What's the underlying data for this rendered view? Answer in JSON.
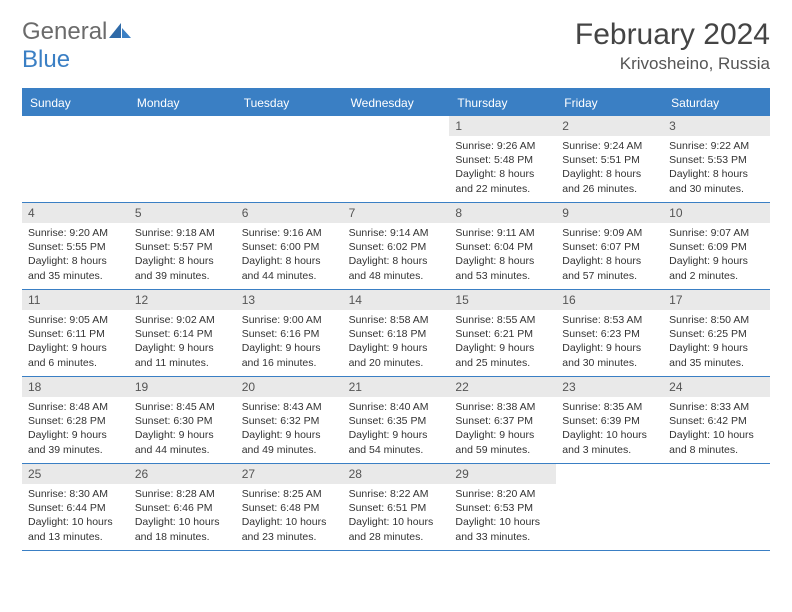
{
  "logo": {
    "general": "General",
    "blue": "Blue"
  },
  "header": {
    "title": "February 2024",
    "location": "Krivosheino, Russia"
  },
  "colors": {
    "accent": "#3a7fc4",
    "header_text": "#ffffff",
    "daynum_bg": "#e9e9e9",
    "body_bg": "#ffffff",
    "text": "#333333"
  },
  "day_names": [
    "Sunday",
    "Monday",
    "Tuesday",
    "Wednesday",
    "Thursday",
    "Friday",
    "Saturday"
  ],
  "weeks": [
    [
      {
        "day": "",
        "lines": []
      },
      {
        "day": "",
        "lines": []
      },
      {
        "day": "",
        "lines": []
      },
      {
        "day": "",
        "lines": []
      },
      {
        "day": "1",
        "lines": [
          "Sunrise: 9:26 AM",
          "Sunset: 5:48 PM",
          "Daylight: 8 hours and 22 minutes."
        ]
      },
      {
        "day": "2",
        "lines": [
          "Sunrise: 9:24 AM",
          "Sunset: 5:51 PM",
          "Daylight: 8 hours and 26 minutes."
        ]
      },
      {
        "day": "3",
        "lines": [
          "Sunrise: 9:22 AM",
          "Sunset: 5:53 PM",
          "Daylight: 8 hours and 30 minutes."
        ]
      }
    ],
    [
      {
        "day": "4",
        "lines": [
          "Sunrise: 9:20 AM",
          "Sunset: 5:55 PM",
          "Daylight: 8 hours and 35 minutes."
        ]
      },
      {
        "day": "5",
        "lines": [
          "Sunrise: 9:18 AM",
          "Sunset: 5:57 PM",
          "Daylight: 8 hours and 39 minutes."
        ]
      },
      {
        "day": "6",
        "lines": [
          "Sunrise: 9:16 AM",
          "Sunset: 6:00 PM",
          "Daylight: 8 hours and 44 minutes."
        ]
      },
      {
        "day": "7",
        "lines": [
          "Sunrise: 9:14 AM",
          "Sunset: 6:02 PM",
          "Daylight: 8 hours and 48 minutes."
        ]
      },
      {
        "day": "8",
        "lines": [
          "Sunrise: 9:11 AM",
          "Sunset: 6:04 PM",
          "Daylight: 8 hours and 53 minutes."
        ]
      },
      {
        "day": "9",
        "lines": [
          "Sunrise: 9:09 AM",
          "Sunset: 6:07 PM",
          "Daylight: 8 hours and 57 minutes."
        ]
      },
      {
        "day": "10",
        "lines": [
          "Sunrise: 9:07 AM",
          "Sunset: 6:09 PM",
          "Daylight: 9 hours and 2 minutes."
        ]
      }
    ],
    [
      {
        "day": "11",
        "lines": [
          "Sunrise: 9:05 AM",
          "Sunset: 6:11 PM",
          "Daylight: 9 hours and 6 minutes."
        ]
      },
      {
        "day": "12",
        "lines": [
          "Sunrise: 9:02 AM",
          "Sunset: 6:14 PM",
          "Daylight: 9 hours and 11 minutes."
        ]
      },
      {
        "day": "13",
        "lines": [
          "Sunrise: 9:00 AM",
          "Sunset: 6:16 PM",
          "Daylight: 9 hours and 16 minutes."
        ]
      },
      {
        "day": "14",
        "lines": [
          "Sunrise: 8:58 AM",
          "Sunset: 6:18 PM",
          "Daylight: 9 hours and 20 minutes."
        ]
      },
      {
        "day": "15",
        "lines": [
          "Sunrise: 8:55 AM",
          "Sunset: 6:21 PM",
          "Daylight: 9 hours and 25 minutes."
        ]
      },
      {
        "day": "16",
        "lines": [
          "Sunrise: 8:53 AM",
          "Sunset: 6:23 PM",
          "Daylight: 9 hours and 30 minutes."
        ]
      },
      {
        "day": "17",
        "lines": [
          "Sunrise: 8:50 AM",
          "Sunset: 6:25 PM",
          "Daylight: 9 hours and 35 minutes."
        ]
      }
    ],
    [
      {
        "day": "18",
        "lines": [
          "Sunrise: 8:48 AM",
          "Sunset: 6:28 PM",
          "Daylight: 9 hours and 39 minutes."
        ]
      },
      {
        "day": "19",
        "lines": [
          "Sunrise: 8:45 AM",
          "Sunset: 6:30 PM",
          "Daylight: 9 hours and 44 minutes."
        ]
      },
      {
        "day": "20",
        "lines": [
          "Sunrise: 8:43 AM",
          "Sunset: 6:32 PM",
          "Daylight: 9 hours and 49 minutes."
        ]
      },
      {
        "day": "21",
        "lines": [
          "Sunrise: 8:40 AM",
          "Sunset: 6:35 PM",
          "Daylight: 9 hours and 54 minutes."
        ]
      },
      {
        "day": "22",
        "lines": [
          "Sunrise: 8:38 AM",
          "Sunset: 6:37 PM",
          "Daylight: 9 hours and 59 minutes."
        ]
      },
      {
        "day": "23",
        "lines": [
          "Sunrise: 8:35 AM",
          "Sunset: 6:39 PM",
          "Daylight: 10 hours and 3 minutes."
        ]
      },
      {
        "day": "24",
        "lines": [
          "Sunrise: 8:33 AM",
          "Sunset: 6:42 PM",
          "Daylight: 10 hours and 8 minutes."
        ]
      }
    ],
    [
      {
        "day": "25",
        "lines": [
          "Sunrise: 8:30 AM",
          "Sunset: 6:44 PM",
          "Daylight: 10 hours and 13 minutes."
        ]
      },
      {
        "day": "26",
        "lines": [
          "Sunrise: 8:28 AM",
          "Sunset: 6:46 PM",
          "Daylight: 10 hours and 18 minutes."
        ]
      },
      {
        "day": "27",
        "lines": [
          "Sunrise: 8:25 AM",
          "Sunset: 6:48 PM",
          "Daylight: 10 hours and 23 minutes."
        ]
      },
      {
        "day": "28",
        "lines": [
          "Sunrise: 8:22 AM",
          "Sunset: 6:51 PM",
          "Daylight: 10 hours and 28 minutes."
        ]
      },
      {
        "day": "29",
        "lines": [
          "Sunrise: 8:20 AM",
          "Sunset: 6:53 PM",
          "Daylight: 10 hours and 33 minutes."
        ]
      },
      {
        "day": "",
        "lines": []
      },
      {
        "day": "",
        "lines": []
      }
    ]
  ]
}
